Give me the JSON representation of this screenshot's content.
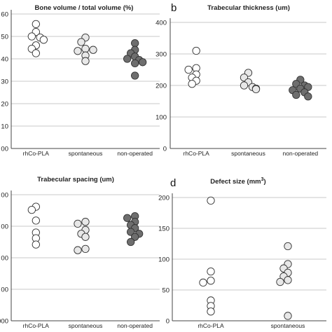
{
  "chart_data": [
    {
      "type": "scatter",
      "title": "Bone volume / total volume (%)",
      "letter": "",
      "categories": [
        "rhCo-PLA",
        "spontaneous",
        "non-operated"
      ],
      "ylim": [
        0,
        60
      ],
      "yticks": [
        "00",
        "10",
        "20",
        "30",
        "40",
        "50",
        "60"
      ],
      "grid": true,
      "series": [
        {
          "category": "rhCo-PLA",
          "fill": "#ffffff",
          "values": [
            55.5,
            52,
            50,
            49.5,
            48.5,
            46,
            44.5,
            42.5
          ]
        },
        {
          "category": "spontaneous",
          "fill": "#e8e8e8",
          "values": [
            49.5,
            47.5,
            44.5,
            43.5,
            44,
            41.5,
            39
          ]
        },
        {
          "category": "non-operated",
          "fill": "#6e6e6e",
          "values": [
            47,
            44,
            42.5,
            41,
            40,
            39.5,
            38.5,
            38,
            32.5
          ]
        }
      ]
    },
    {
      "type": "scatter",
      "title": "Trabecular thickness (um)",
      "letter": "b",
      "categories": [
        "rhCo-PLA",
        "spontaneous",
        "non-operated"
      ],
      "ylim": [
        0,
        400
      ],
      "yticks": [
        "0",
        "100",
        "200",
        "300",
        "400"
      ],
      "grid": true,
      "series": [
        {
          "category": "rhCo-PLA",
          "fill": "#ffffff",
          "values": [
            310,
            255,
            250,
            235,
            225,
            215,
            205
          ]
        },
        {
          "category": "spontaneous",
          "fill": "#e8e8e8",
          "values": [
            240,
            225,
            210,
            200,
            195,
            190,
            188
          ]
        },
        {
          "category": "non-operated",
          "fill": "#6e6e6e",
          "values": [
            218,
            205,
            200,
            195,
            190,
            185,
            178,
            170,
            165
          ]
        }
      ]
    },
    {
      "type": "scatter",
      "title": "Trabecular spacing (um)",
      "letter": "",
      "categories": [
        "rhCo-PLA",
        "spontaneous",
        "non-operated"
      ],
      "ylim": [
        0,
        1000
      ],
      "yticks": [
        "000",
        "00",
        "00",
        "00",
        "00"
      ],
      "grid": true,
      "series": [
        {
          "category": "rhCo-PLA",
          "fill": "#ffffff",
          "values": [
            905,
            880,
            795,
            700,
            655,
            605
          ]
        },
        {
          "category": "spontaneous",
          "fill": "#e8e8e8",
          "values": [
            785,
            770,
            720,
            690,
            665,
            570,
            560
          ]
        },
        {
          "category": "non-operated",
          "fill": "#6e6e6e",
          "values": [
            830,
            815,
            785,
            760,
            735,
            705,
            690,
            665,
            625
          ]
        }
      ]
    },
    {
      "type": "scatter",
      "title": "Defect size (mm",
      "title_sup": "3",
      "title_end": ")",
      "letter": "d",
      "categories": [
        "rhCo-PLA",
        "spontaneous"
      ],
      "ylim": [
        0,
        200
      ],
      "yticks": [
        "0",
        "50",
        "100",
        "150",
        "200"
      ],
      "grid": true,
      "series": [
        {
          "category": "rhCo-PLA",
          "fill": "#ffffff",
          "values": [
            195,
            80,
            65,
            62,
            33,
            24,
            15
          ]
        },
        {
          "category": "spontaneous",
          "fill": "#e8e8e8",
          "values": [
            121,
            92,
            85,
            78,
            72,
            66,
            63,
            8
          ]
        }
      ]
    }
  ]
}
